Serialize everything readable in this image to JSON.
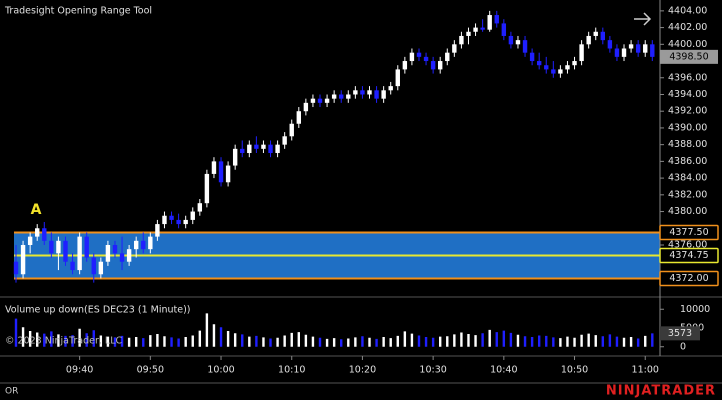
{
  "chart_data": {
    "type": "candlestick",
    "title": "Tradesight Opening Range Tool",
    "annotation": "A",
    "up_color": "#ffffff",
    "down_color": "#1f1fff",
    "grid": false,
    "categories": [
      null,
      null,
      null,
      null,
      null,
      null,
      null,
      null,
      null,
      "09:40",
      null,
      null,
      null,
      null,
      null,
      null,
      null,
      null,
      null,
      "09:50",
      null,
      null,
      null,
      null,
      null,
      null,
      null,
      null,
      null,
      "10:00",
      null,
      null,
      null,
      null,
      null,
      null,
      null,
      null,
      null,
      "10:10",
      null,
      null,
      null,
      null,
      null,
      null,
      null,
      null,
      null,
      "10:20",
      null,
      null,
      null,
      null,
      null,
      null,
      null,
      null,
      null,
      "10:30",
      null,
      null,
      null,
      null,
      null,
      null,
      null,
      null,
      null,
      "10:40",
      null,
      null,
      null,
      null,
      null,
      null,
      null,
      null,
      null,
      "10:50",
      null,
      null,
      null,
      null,
      null,
      null,
      null,
      null,
      null,
      "11:00",
      null
    ],
    "candles": [
      [
        4374,
        4376,
        4371.5,
        4372.5
      ],
      [
        4372.5,
        4376.5,
        4372,
        4376
      ],
      [
        4376,
        4377.5,
        4375,
        4377
      ],
      [
        4377,
        4378.5,
        4376.5,
        4378
      ],
      [
        4378,
        4378.75,
        4376,
        4376.5
      ],
      [
        4376.5,
        4377.5,
        4374.5,
        4375
      ],
      [
        4375,
        4377,
        4373,
        4376.5
      ],
      [
        4376.5,
        4377,
        4373.5,
        4374
      ],
      [
        4374,
        4375,
        4372.5,
        4373
      ],
      [
        4373,
        4377.5,
        4372.5,
        4377
      ],
      [
        4377,
        4377.5,
        4374,
        4374.5
      ],
      [
        4374.5,
        4375,
        4371.5,
        4372.5
      ],
      [
        4372.5,
        4374.5,
        4372,
        4374
      ],
      [
        4374,
        4376.5,
        4373.5,
        4376
      ],
      [
        4376,
        4376.5,
        4374.5,
        4375
      ],
      [
        4375,
        4377,
        4373,
        4374
      ],
      [
        4374,
        4376,
        4373.5,
        4375.5
      ],
      [
        4375.5,
        4377,
        4374.5,
        4376.5
      ],
      [
        4376.5,
        4377.5,
        4375,
        4375.5
      ],
      [
        4375.5,
        4377.5,
        4375,
        4377
      ],
      [
        4377,
        4379,
        4376.5,
        4378.5
      ],
      [
        4378.5,
        4380,
        4378,
        4379.5
      ],
      [
        4379.5,
        4380,
        4378.5,
        4379
      ],
      [
        4379,
        4379.75,
        4378,
        4378.5
      ],
      [
        4378.5,
        4379.5,
        4378,
        4379
      ],
      [
        4379,
        4380.5,
        4378.5,
        4380
      ],
      [
        4380,
        4381.5,
        4379.5,
        4381
      ],
      [
        4381,
        4385,
        4380.5,
        4384.5
      ],
      [
        4384.5,
        4386.5,
        4384,
        4386
      ],
      [
        4386,
        4386.5,
        4383,
        4383.5
      ],
      [
        4383.5,
        4386,
        4383,
        4385.5
      ],
      [
        4385.5,
        4388,
        4385,
        4387.5
      ],
      [
        4387.5,
        4388.5,
        4386.5,
        4387
      ],
      [
        4387,
        4388.5,
        4386.5,
        4388
      ],
      [
        4388,
        4389,
        4387,
        4387.5
      ],
      [
        4387.5,
        4388.5,
        4387,
        4388
      ],
      [
        4388,
        4388.5,
        4386.5,
        4387
      ],
      [
        4387,
        4388.5,
        4386.5,
        4388
      ],
      [
        4388,
        4389.5,
        4387.5,
        4389
      ],
      [
        4389,
        4391,
        4388.5,
        4390.5
      ],
      [
        4390.5,
        4392.5,
        4390,
        4392
      ],
      [
        4392,
        4393.5,
        4391.5,
        4393
      ],
      [
        4393,
        4394,
        4392.5,
        4393.5
      ],
      [
        4393.5,
        4394,
        4392.5,
        4393
      ],
      [
        4393,
        4394,
        4392.5,
        4393.5
      ],
      [
        4393.5,
        4394.5,
        4393,
        4394
      ],
      [
        4394,
        4394.5,
        4393,
        4393.5
      ],
      [
        4393.5,
        4394.5,
        4393,
        4394
      ],
      [
        4394,
        4395,
        4393.5,
        4394.5
      ],
      [
        4394.5,
        4395,
        4393.5,
        4394
      ],
      [
        4394,
        4395,
        4393.5,
        4394.5
      ],
      [
        4394.5,
        4395,
        4393,
        4393.5
      ],
      [
        4393.5,
        4395,
        4393,
        4394.5
      ],
      [
        4394.5,
        4395.5,
        4394,
        4395
      ],
      [
        4395,
        4397.5,
        4394.5,
        4397
      ],
      [
        4397,
        4398.5,
        4396.5,
        4398
      ],
      [
        4398,
        4399.5,
        4397.5,
        4399
      ],
      [
        4399,
        4399.5,
        4398,
        4398.5
      ],
      [
        4398.5,
        4399,
        4397.5,
        4398
      ],
      [
        4398,
        4398.5,
        4396.5,
        4397
      ],
      [
        4397,
        4398.5,
        4396.5,
        4398
      ],
      [
        4398,
        4399.5,
        4397.5,
        4399
      ],
      [
        4399,
        4400.5,
        4398.5,
        4400
      ],
      [
        4400,
        4401.5,
        4399.5,
        4401
      ],
      [
        4401,
        4402,
        4400,
        4401.5
      ],
      [
        4401.5,
        4402.5,
        4401,
        4402
      ],
      [
        4402,
        4403,
        4401.5,
        4401.75
      ],
      [
        4401.75,
        4404,
        4401.5,
        4403.5
      ],
      [
        4403.5,
        4404,
        4402,
        4402.5
      ],
      [
        4402.5,
        4403,
        4400.5,
        4401
      ],
      [
        4401,
        4401.5,
        4399.5,
        4400
      ],
      [
        4400,
        4401,
        4399.5,
        4400.5
      ],
      [
        4400.5,
        4401,
        4398.5,
        4399
      ],
      [
        4399,
        4399.5,
        4397.5,
        4398
      ],
      [
        4398,
        4399,
        4397,
        4397.5
      ],
      [
        4397.5,
        4398.5,
        4396.5,
        4397
      ],
      [
        4397,
        4398,
        4396,
        4396.5
      ],
      [
        4396.5,
        4397.5,
        4396,
        4397
      ],
      [
        4397,
        4398,
        4396.5,
        4397.5
      ],
      [
        4397.5,
        4398.5,
        4397,
        4398
      ],
      [
        4398,
        4400.5,
        4397.5,
        4400
      ],
      [
        4400,
        4401.5,
        4399.5,
        4401
      ],
      [
        4401,
        4402,
        4400.5,
        4401.5
      ],
      [
        4401.5,
        4402,
        4400,
        4400.5
      ],
      [
        4400.5,
        4401,
        4399,
        4399.5
      ],
      [
        4399.5,
        4400,
        4398,
        4398.5
      ],
      [
        4398.5,
        4400,
        4398,
        4399.5
      ],
      [
        4399.5,
        4400.5,
        4399,
        4400
      ],
      [
        4400,
        4400.5,
        4398.5,
        4399
      ],
      [
        4399,
        4400.5,
        4398.5,
        4400
      ],
      [
        4400,
        4400.5,
        4398,
        4398.5
      ]
    ],
    "ylim": [
      4369.9,
      4405.3
    ],
    "yticks": [
      {
        "value": 4404,
        "label": "4404.00"
      },
      {
        "value": 4402,
        "label": "4402.00"
      },
      {
        "value": 4400,
        "label": "4400.00"
      },
      {
        "value": 4396,
        "label": "4396.00"
      },
      {
        "value": 4394,
        "label": "4394.00"
      },
      {
        "value": 4392,
        "label": "4392.00"
      },
      {
        "value": 4390,
        "label": "4390.00"
      },
      {
        "value": 4388,
        "label": "4388.00"
      },
      {
        "value": 4386,
        "label": "4386.00"
      },
      {
        "value": 4384,
        "label": "4384.00"
      },
      {
        "value": 4382,
        "label": "4382.00"
      },
      {
        "value": 4380,
        "label": "4380.00"
      },
      {
        "value": 4376,
        "label": "4376.00"
      }
    ],
    "last_price": {
      "value": 4398.5,
      "label": "4398.50"
    },
    "opening_range": {
      "high": {
        "value": 4377.5,
        "label": "4377.50",
        "color": "#f0901c"
      },
      "mid": {
        "value": 4374.75,
        "label": "4374.75",
        "color": "#e8e830"
      },
      "low": {
        "value": 4372,
        "label": "4372.00",
        "color": "#f0901c"
      },
      "fill": "#1f6fc4"
    },
    "volume": {
      "title": "Volume up down(ES DEC23 (1 Minute))",
      "values": [
        7500,
        5200,
        4200,
        3800,
        3500,
        4100,
        3300,
        2900,
        3100,
        4800,
        3600,
        4400,
        3000,
        2700,
        2500,
        2900,
        2400,
        2600,
        2300,
        3100,
        3400,
        2800,
        2500,
        2200,
        2600,
        3000,
        4300,
        8900,
        6000,
        5200,
        4200,
        3600,
        3300,
        2700,
        2900,
        2500,
        2200,
        2400,
        3000,
        3700,
        3900,
        3200,
        2700,
        2400,
        2100,
        2300,
        2000,
        2200,
        2500,
        2800,
        2400,
        2100,
        2600,
        2300,
        2900,
        4100,
        3500,
        3000,
        2600,
        2400,
        2700,
        2800,
        3300,
        3800,
        3400,
        3100,
        3600,
        4500,
        3900,
        4300,
        3700,
        3200,
        2800,
        2600,
        3000,
        2900,
        2500,
        2300,
        2700,
        2400,
        3200,
        3500,
        3100,
        2800,
        3300,
        2700,
        2400,
        2600,
        2200,
        2900,
        3573
      ],
      "ylim": [
        -2200,
        13000
      ],
      "yticks": [
        10000,
        5000,
        0
      ],
      "last": 3573
    },
    "copyright": "© 2023 NinjaTrader, LLC",
    "footer_left": "OR",
    "brand": "NINJATRADER"
  }
}
